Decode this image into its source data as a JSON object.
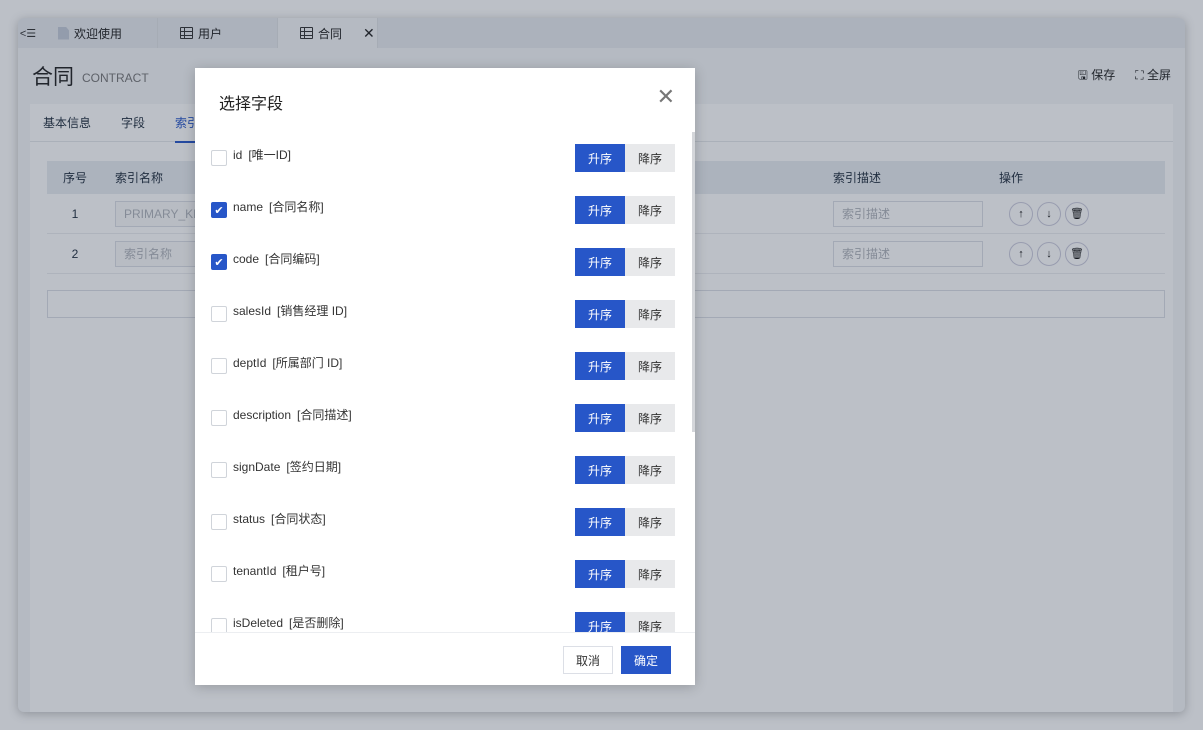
{
  "tabs": [
    {
      "label": "欢迎使用",
      "icon": "document-icon"
    },
    {
      "label": "用户",
      "icon": "table-icon"
    },
    {
      "label": "合同",
      "icon": "table-icon",
      "active": true
    }
  ],
  "header": {
    "title": "合同",
    "subtitle": "CONTRACT",
    "save": "保存",
    "fullscreen": "全屏"
  },
  "subtabs": [
    "基本信息",
    "字段",
    "索引"
  ],
  "table": {
    "columns": [
      "序号",
      "索引名称",
      "索引描述",
      "操作"
    ],
    "rows": [
      {
        "no": "1",
        "name": "PRIMARY_KEY",
        "name_is_placeholder": false,
        "desc_placeholder": "索引描述"
      },
      {
        "no": "2",
        "name": "索引名称",
        "desc_placeholder": "索引描述"
      }
    ]
  },
  "modal": {
    "title": "选择字段",
    "cancel": "取消",
    "ok": "确定",
    "asc": "升序",
    "desc": "降序",
    "fields": [
      {
        "name": "id",
        "label": "[唯一ID]",
        "checked": false
      },
      {
        "name": "name",
        "label": "[合同名称]",
        "checked": true
      },
      {
        "name": "code",
        "label": "[合同编码]",
        "checked": true
      },
      {
        "name": "salesId",
        "label": "[销售经理 ID]",
        "checked": false
      },
      {
        "name": "deptId",
        "label": "[所属部门 ID]",
        "checked": false
      },
      {
        "name": "description",
        "label": "[合同描述]",
        "checked": false
      },
      {
        "name": "signDate",
        "label": "[签约日期]",
        "checked": false
      },
      {
        "name": "status",
        "label": "[合同状态]",
        "checked": false
      },
      {
        "name": "tenantId",
        "label": "[租户号]",
        "checked": false
      },
      {
        "name": "isDeleted",
        "label": "[是否删除]",
        "checked": false
      }
    ]
  },
  "colors": {
    "accent": "#2756c8"
  }
}
